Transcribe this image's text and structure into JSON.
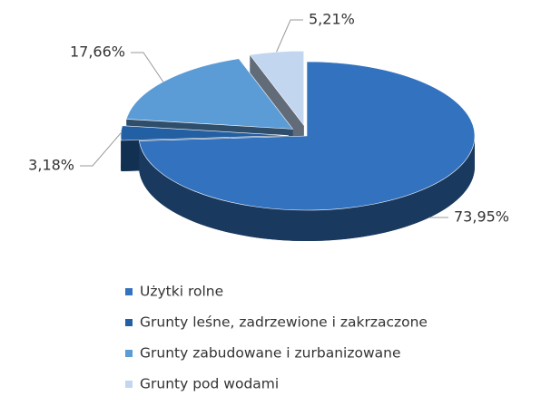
{
  "chart_data": {
    "type": "pie3d",
    "categories": [
      "Użytki rolne",
      "Grunty leśne, zadrzewione i zakrzaczone",
      "Grunty zabudowane i zurbanizowane",
      "Grunty pod wodami"
    ],
    "values": [
      73.95,
      3.18,
      17.66,
      5.21
    ],
    "value_labels": [
      "73,95%",
      "3,18%",
      "17,66%",
      "5,21%"
    ],
    "colors": [
      "#3372be",
      "#225fa3",
      "#5b9bd6",
      "#c3d6f0"
    ],
    "legend": "bottom"
  }
}
